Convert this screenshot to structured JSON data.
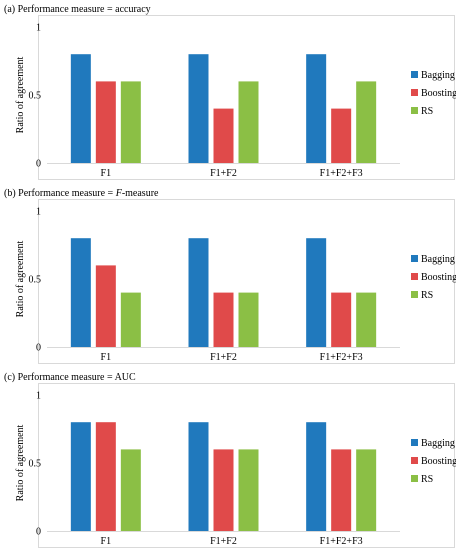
{
  "legend": [
    {
      "name": "Bagging",
      "color": "#2079BD"
    },
    {
      "name": "Boosting",
      "color": "#E04A4A"
    },
    {
      "name": "RS",
      "color": "#8BBF45"
    }
  ],
  "chart_data": [
    {
      "type": "bar",
      "title": "(a) Performance measure = accuracy",
      "ylabel": "Ratio of agreement",
      "xlabel": "",
      "categories": [
        "F1",
        "F1+F2",
        "F1+F2+F3"
      ],
      "ylim": [
        0,
        1
      ],
      "yticks": [
        "0",
        "0.5",
        "1"
      ],
      "legend_position": "right",
      "series": [
        {
          "name": "Bagging",
          "values": [
            0.8,
            0.8,
            0.8
          ]
        },
        {
          "name": "Boosting",
          "values": [
            0.6,
            0.4,
            0.4
          ]
        },
        {
          "name": "RS",
          "values": [
            0.6,
            0.6,
            0.6
          ]
        }
      ]
    },
    {
      "type": "bar",
      "title": "(b) Performance measure = F-measure",
      "title_prefix": "(b) Performance measure = ",
      "title_italic": "F",
      "title_suffix": "-measure",
      "ylabel": "Ratio of agreement",
      "xlabel": "",
      "categories": [
        "F1",
        "F1+F2",
        "F1+F2+F3"
      ],
      "ylim": [
        0,
        1
      ],
      "yticks": [
        "0",
        "0.5",
        "1"
      ],
      "legend_position": "right",
      "series": [
        {
          "name": "Bagging",
          "values": [
            0.8,
            0.8,
            0.8
          ]
        },
        {
          "name": "Boosting",
          "values": [
            0.6,
            0.4,
            0.4
          ]
        },
        {
          "name": "RS",
          "values": [
            0.4,
            0.4,
            0.4
          ]
        }
      ]
    },
    {
      "type": "bar",
      "title": "(c) Performance measure = AUC",
      "ylabel": "Ratio of agreement",
      "xlabel": "",
      "categories": [
        "F1",
        "F1+F2",
        "F1+F2+F3"
      ],
      "ylim": [
        0,
        1
      ],
      "yticks": [
        "0",
        "0.5",
        "1"
      ],
      "legend_position": "right",
      "series": [
        {
          "name": "Bagging",
          "values": [
            0.8,
            0.8,
            0.8
          ]
        },
        {
          "name": "Boosting",
          "values": [
            0.8,
            0.6,
            0.6
          ]
        },
        {
          "name": "RS",
          "values": [
            0.6,
            0.6,
            0.6
          ]
        }
      ]
    }
  ]
}
